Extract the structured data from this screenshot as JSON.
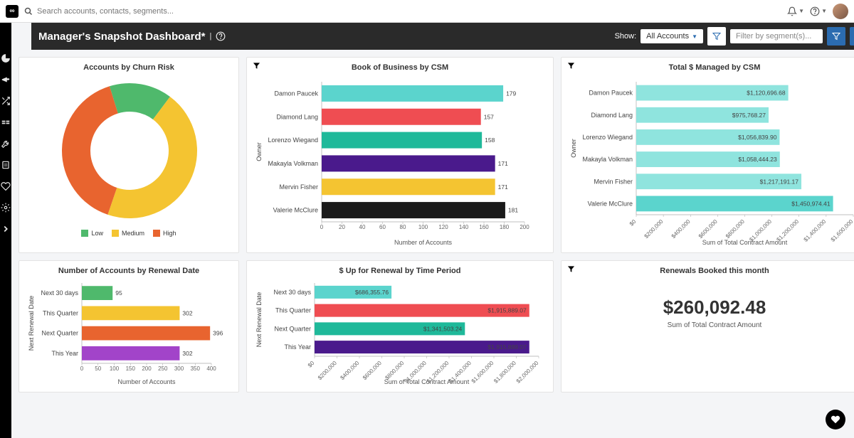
{
  "search": {
    "placeholder": "Search accounts, contacts, segments..."
  },
  "header": {
    "title": "Manager's Snapshot Dashboard*",
    "show_label": "Show:",
    "accounts_dd": "All Accounts",
    "filter_placeholder": "Filter by segment(s)..."
  },
  "cards": {
    "churn": {
      "title": "Accounts by Churn Risk",
      "type": "donut",
      "segments": [
        {
          "label": "Low",
          "value": 15,
          "color": "#4fb96c"
        },
        {
          "label": "Medium",
          "value": 45,
          "color": "#f4c431"
        },
        {
          "label": "High",
          "value": 40,
          "color": "#e8642f"
        }
      ],
      "inner_radius": 55,
      "outer_radius": 95
    },
    "bob": {
      "title": "Book of Business by CSM",
      "type": "bar-horizontal",
      "ylabel": "Owner",
      "xlabel": "Number of Accounts",
      "xmax": 200,
      "xtick_step": 20,
      "bars": [
        {
          "label": "Damon Paucek",
          "value": 179,
          "color": "#5bd4cd",
          "text": "179"
        },
        {
          "label": "Diamond Lang",
          "value": 157,
          "color": "#ef4d52",
          "text": "157"
        },
        {
          "label": "Lorenzo Wiegand",
          "value": 158,
          "color": "#1fb99a",
          "text": "158"
        },
        {
          "label": "Makayla Volkman",
          "value": 171,
          "color": "#4a1a8c",
          "text": "171"
        },
        {
          "label": "Mervin Fisher",
          "value": 171,
          "color": "#f4c431",
          "text": "171"
        },
        {
          "label": "Valerie McClure",
          "value": 181,
          "color": "#1a1a1a",
          "text": "181"
        }
      ]
    },
    "managed": {
      "title": "Total $ Managed by CSM",
      "type": "bar-horizontal",
      "ylabel": "Owner",
      "xlabel": "Sum of Total Contract Amount",
      "xmax": 1600000,
      "xtick_step": 200000,
      "bars": [
        {
          "label": "Damon Paucek",
          "value": 1120696.68,
          "color": "#8fe4de",
          "text": "$1,120,696.68"
        },
        {
          "label": "Diamond Lang",
          "value": 975768.27,
          "color": "#8fe4de",
          "text": "$975,768.27"
        },
        {
          "label": "Lorenzo Wiegand",
          "value": 1056839.9,
          "color": "#8fe4de",
          "text": "$1,056,839.90"
        },
        {
          "label": "Makayla Volkman",
          "value": 1058444.23,
          "color": "#8fe4de",
          "text": "$1,058,444.23"
        },
        {
          "label": "Mervin Fisher",
          "value": 1217191.17,
          "color": "#8fe4de",
          "text": "$1,217,191.17"
        },
        {
          "label": "Valerie McClure",
          "value": 1450974.41,
          "color": "#5bd4cd",
          "text": "$1,450,974.41"
        }
      ]
    },
    "renewal": {
      "title": "Number of Accounts by Renewal Date",
      "type": "bar-horizontal",
      "ylabel": "Next Renewal Date",
      "xlabel": "Number of Accounts",
      "xmax": 400,
      "xtick_step": 50,
      "bars": [
        {
          "label": "Next 30 days",
          "value": 95,
          "color": "#4fb96c",
          "text": "95"
        },
        {
          "label": "This Quarter",
          "value": 302,
          "color": "#f4c431",
          "text": "302"
        },
        {
          "label": "Next Quarter",
          "value": 396,
          "color": "#e8642f",
          "text": "396"
        },
        {
          "label": "This Year",
          "value": 302,
          "color": "#a244c9",
          "text": "302"
        }
      ]
    },
    "upfor": {
      "title": "$ Up for Renewal by Time Period",
      "type": "bar-horizontal",
      "ylabel": "Next Renewal Date",
      "xlabel": "Sum of Total Contract Amount",
      "xmax": 2000000,
      "xtick_step": 200000,
      "bars": [
        {
          "label": "Next 30 days",
          "value": 686355.76,
          "color": "#5bd4cd",
          "text": "$686,355.76"
        },
        {
          "label": "This Quarter",
          "value": 1915889.07,
          "color": "#ef4d52",
          "text": "$1,915,889.07"
        },
        {
          "label": "Next Quarter",
          "value": 1341503.24,
          "color": "#1fb99a",
          "text": "$1,341,503.24"
        },
        {
          "label": "This Year",
          "value": 1915889.07,
          "color": "#4a1a8c",
          "text": "$1,915,889.07"
        }
      ]
    },
    "booked": {
      "title": "Renewals Booked this month",
      "value": "$260,092.48",
      "sub": "Sum of Total Contract Amount"
    }
  }
}
